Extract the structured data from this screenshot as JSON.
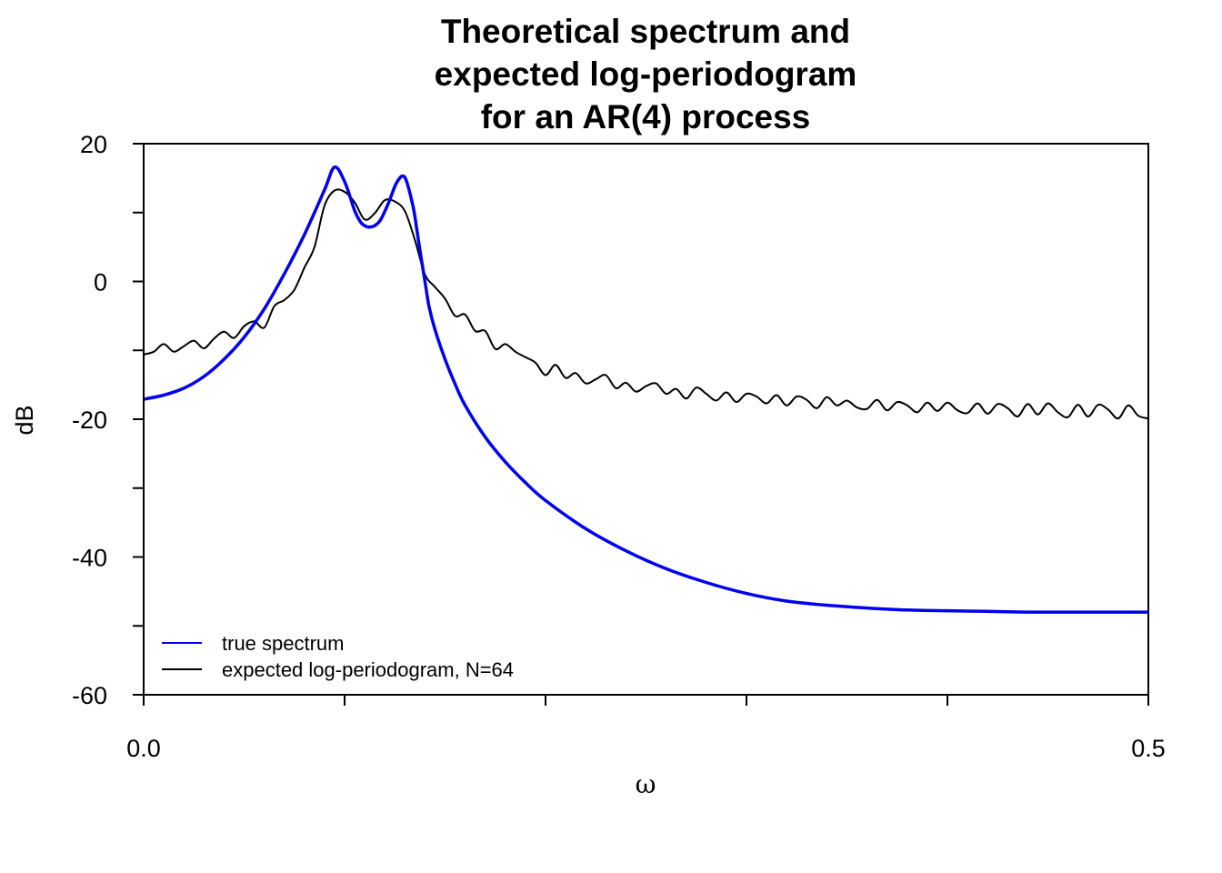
{
  "chart_data": {
    "type": "line",
    "title": [
      "Theoretical spectrum and",
      "expected log-periodogram",
      "for an AR(4) process"
    ],
    "xlabel": "ω",
    "ylabel": "dB",
    "xlim": [
      0,
      0.5
    ],
    "ylim": [
      -60,
      20
    ],
    "x_ticks": [
      0,
      0.1,
      0.2,
      0.3,
      0.4,
      0.5
    ],
    "x_tick_labels": [
      "0.0",
      "",
      "",
      "",
      "",
      "0.5"
    ],
    "y_ticks": [
      -60,
      -50,
      -40,
      -30,
      -20,
      -10,
      0,
      10,
      20
    ],
    "y_tick_labels": [
      "-60",
      "",
      "-40",
      "",
      "-20",
      "",
      "0",
      "",
      "20"
    ],
    "grid": false,
    "legend_position": "bottom-left",
    "series": [
      {
        "name": "true spectrum",
        "color": "#0000ee",
        "x": [
          0.0,
          0.01,
          0.02,
          0.03,
          0.04,
          0.05,
          0.06,
          0.07,
          0.08,
          0.09,
          0.095,
          0.1,
          0.105,
          0.108,
          0.11,
          0.112,
          0.115,
          0.118,
          0.122,
          0.126,
          0.13,
          0.134,
          0.136,
          0.138,
          0.14,
          0.142,
          0.145,
          0.15,
          0.155,
          0.16,
          0.17,
          0.18,
          0.19,
          0.2,
          0.22,
          0.24,
          0.26,
          0.28,
          0.3,
          0.32,
          0.34,
          0.36,
          0.38,
          0.4,
          0.42,
          0.44,
          0.46,
          0.48,
          0.5
        ],
        "y": [
          -17.1,
          -16.5,
          -15.5,
          -13.8,
          -11.3,
          -8.1,
          -4.0,
          1.1,
          6.8,
          13.3,
          16.6,
          14.5,
          10.3,
          8.6,
          8.1,
          7.9,
          8.1,
          9.0,
          11.5,
          14.4,
          15.1,
          11.0,
          7.4,
          3.6,
          0.0,
          -3.6,
          -7.0,
          -11.3,
          -14.9,
          -18.0,
          -22.6,
          -26.2,
          -29.2,
          -31.8,
          -35.9,
          -39.1,
          -41.7,
          -43.7,
          -45.3,
          -46.4,
          -47.0,
          -47.4,
          -47.7,
          -47.8,
          -47.9,
          -48.0,
          -48.0,
          -48.0,
          -48.0
        ]
      },
      {
        "name": "expected log-periodogram, N=64",
        "color": "#000000",
        "x": [
          0.0,
          0.005,
          0.01,
          0.015,
          0.02,
          0.025,
          0.03,
          0.035,
          0.04,
          0.045,
          0.05,
          0.055,
          0.06,
          0.065,
          0.07,
          0.075,
          0.08,
          0.085,
          0.09,
          0.095,
          0.1,
          0.105,
          0.11,
          0.115,
          0.12,
          0.125,
          0.13,
          0.135,
          0.14,
          0.145,
          0.15,
          0.155,
          0.16,
          0.165,
          0.17,
          0.175,
          0.18,
          0.185,
          0.19,
          0.195,
          0.2,
          0.205,
          0.21,
          0.215,
          0.22,
          0.225,
          0.23,
          0.235,
          0.24,
          0.245,
          0.25,
          0.255,
          0.26,
          0.265,
          0.27,
          0.275,
          0.28,
          0.285,
          0.29,
          0.295,
          0.3,
          0.305,
          0.31,
          0.315,
          0.32,
          0.325,
          0.33,
          0.335,
          0.34,
          0.345,
          0.35,
          0.355,
          0.36,
          0.365,
          0.37,
          0.375,
          0.38,
          0.385,
          0.39,
          0.395,
          0.4,
          0.405,
          0.41,
          0.415,
          0.42,
          0.425,
          0.43,
          0.435,
          0.44,
          0.445,
          0.45,
          0.455,
          0.46,
          0.465,
          0.47,
          0.475,
          0.48,
          0.485,
          0.49,
          0.495,
          0.5
        ],
        "y": [
          -10.6,
          -10.2,
          -9.1,
          -10.2,
          -9.4,
          -8.6,
          -9.7,
          -8.3,
          -7.3,
          -8.2,
          -6.5,
          -5.8,
          -6.7,
          -3.6,
          -2.7,
          -1.2,
          2.0,
          5.0,
          11.0,
          13.2,
          13.0,
          11.5,
          9.0,
          9.9,
          11.8,
          11.6,
          10.2,
          6.0,
          1.0,
          -0.8,
          -2.5,
          -5.0,
          -4.8,
          -7.2,
          -7.2,
          -9.8,
          -9.1,
          -10.2,
          -11.0,
          -11.8,
          -13.6,
          -12.1,
          -14.0,
          -13.3,
          -14.8,
          -14.2,
          -13.6,
          -15.5,
          -14.7,
          -16.0,
          -15.2,
          -14.8,
          -16.3,
          -15.6,
          -17.0,
          -15.4,
          -16.3,
          -17.3,
          -16.1,
          -17.5,
          -16.3,
          -16.7,
          -17.7,
          -16.5,
          -18.0,
          -16.7,
          -17.2,
          -18.4,
          -16.8,
          -18.0,
          -17.3,
          -18.3,
          -18.5,
          -17.2,
          -18.7,
          -17.5,
          -18.0,
          -19.0,
          -17.6,
          -18.8,
          -17.6,
          -18.7,
          -19.1,
          -17.7,
          -19.2,
          -17.8,
          -18.4,
          -19.6,
          -17.8,
          -19.3,
          -17.7,
          -19.0,
          -19.7,
          -17.9,
          -19.6,
          -17.9,
          -18.6,
          -19.9,
          -18.0,
          -19.5,
          -19.9
        ]
      }
    ]
  }
}
